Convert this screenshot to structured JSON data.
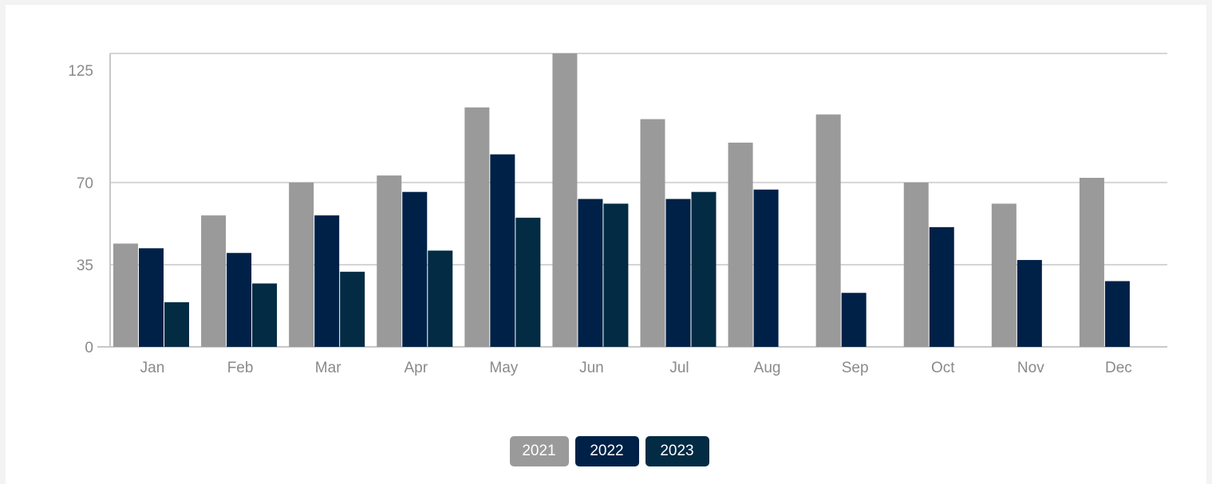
{
  "chart_data": {
    "type": "bar",
    "categories": [
      "Jan",
      "Feb",
      "Mar",
      "Apr",
      "May",
      "Jun",
      "Jul",
      "Aug",
      "Sep",
      "Oct",
      "Nov",
      "Dec"
    ],
    "series": [
      {
        "name": "2021",
        "color": "#9a9a9a",
        "values": [
          44,
          56,
          70,
          73,
          102,
          125,
          97,
          87,
          99,
          70,
          61,
          72
        ]
      },
      {
        "name": "2022",
        "color": "#002147",
        "values": [
          42,
          40,
          56,
          66,
          82,
          63,
          63,
          67,
          23,
          51,
          37,
          28
        ]
      },
      {
        "name": "2023",
        "color": "#032b44",
        "values": [
          19,
          27,
          32,
          41,
          55,
          61,
          66,
          null,
          null,
          null,
          null,
          null
        ]
      }
    ],
    "yticks": [
      0,
      35,
      70,
      125
    ],
    "ylim": [
      0,
      125
    ],
    "grid": true,
    "legend_position": "bottom-center"
  },
  "legend": {
    "items": [
      "2021",
      "2022",
      "2023"
    ]
  }
}
